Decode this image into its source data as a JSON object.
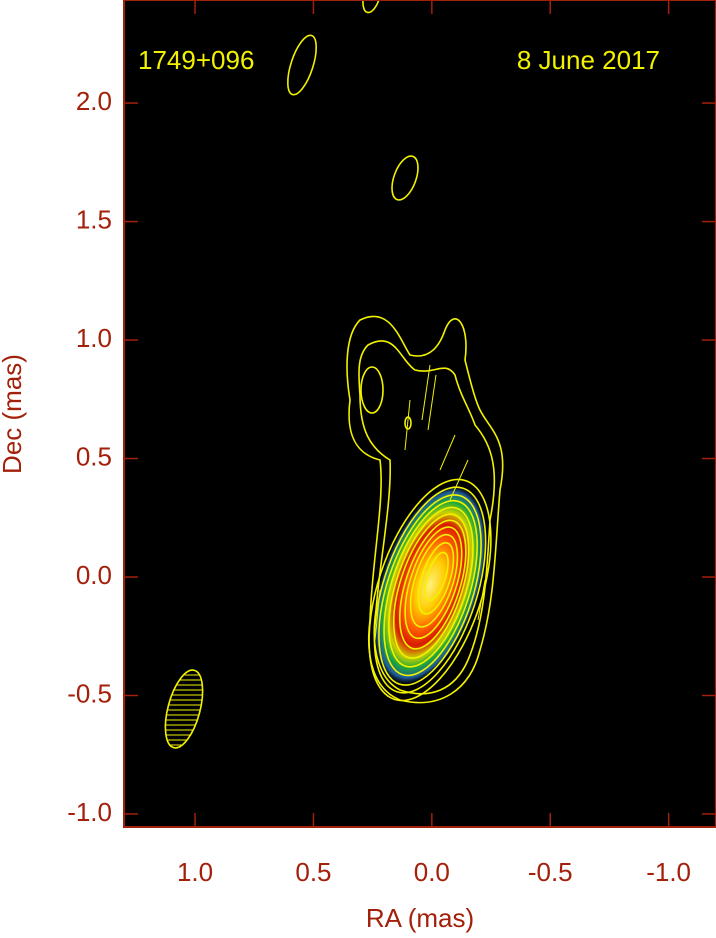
{
  "chart_data": {
    "type": "image",
    "annotations": [
      "1749+096",
      "8 June 2017"
    ],
    "xlabel": "RA (mas)",
    "ylabel": "Dec (mas)",
    "xlim": [
      1.3,
      -1.2
    ],
    "ylim": [
      -1.055,
      2.435
    ],
    "xticks": [
      {
        "value": 1,
        "label": "1.0"
      },
      0.5,
      {
        "value": 0,
        "label": "0.0"
      },
      -0.5,
      {
        "value": -1,
        "label": "-1.0"
      }
    ],
    "yticks": [
      {
        "value": -1,
        "label": "-1.0"
      },
      -0.5,
      {
        "value": 0,
        "label": "0.0"
      },
      0.5,
      {
        "value": 1,
        "label": "1.0"
      },
      1.5,
      {
        "value": 2,
        "label": "2.0"
      }
    ],
    "axis_color": "#a3200a",
    "annotation_color": "#f2f200"
  }
}
